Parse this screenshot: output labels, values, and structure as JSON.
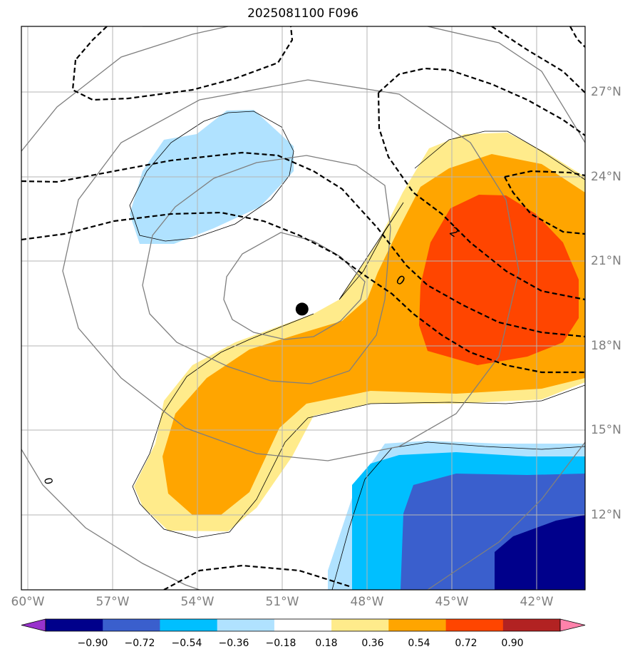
{
  "title": "2025081100 F096",
  "map": {
    "lon_range": [
      -60,
      -40.5
    ],
    "lat_range": [
      9.5,
      29.8
    ],
    "lon_ticks": [
      {
        "value": -60,
        "label": "60°W"
      },
      {
        "value": -57,
        "label": "57°W"
      },
      {
        "value": -54,
        "label": "54°W"
      },
      {
        "value": -51,
        "label": "51°W"
      },
      {
        "value": -48,
        "label": "48°W"
      },
      {
        "value": -45,
        "label": "45°W"
      },
      {
        "value": -42,
        "label": "42°W"
      }
    ],
    "lat_ticks": [
      {
        "value": 27,
        "label": "27°N"
      },
      {
        "value": 24,
        "label": "24°N"
      },
      {
        "value": 21,
        "label": "21°N"
      },
      {
        "value": 18,
        "label": "18°N"
      },
      {
        "value": 15,
        "label": "15°N"
      },
      {
        "value": 12,
        "label": "12°N"
      }
    ],
    "storm_center": {
      "lon": -50.3,
      "lat": 19.3
    },
    "contour_labels": [
      {
        "text": "0",
        "lon": -46.9,
        "lat": 20.2
      },
      {
        "text": "2",
        "lon": -45.0,
        "lat": 21.9
      },
      {
        "text": "0",
        "lon": -59.4,
        "lat": 13.2
      }
    ],
    "grid": true
  },
  "colorbar": {
    "levels": [
      "−0.90",
      "−0.72",
      "−0.54",
      "−0.36",
      "−0.18",
      "0.18",
      "0.36",
      "0.54",
      "0.72",
      "0.90"
    ],
    "colors": [
      "#9932cc",
      "#00008b",
      "#3a5fcd",
      "#00bfff",
      "#b0e2ff",
      "#ffffff",
      "#ffeb8b",
      "#ffa500",
      "#ff4500",
      "#b22222",
      "#ff82ab"
    ]
  }
}
